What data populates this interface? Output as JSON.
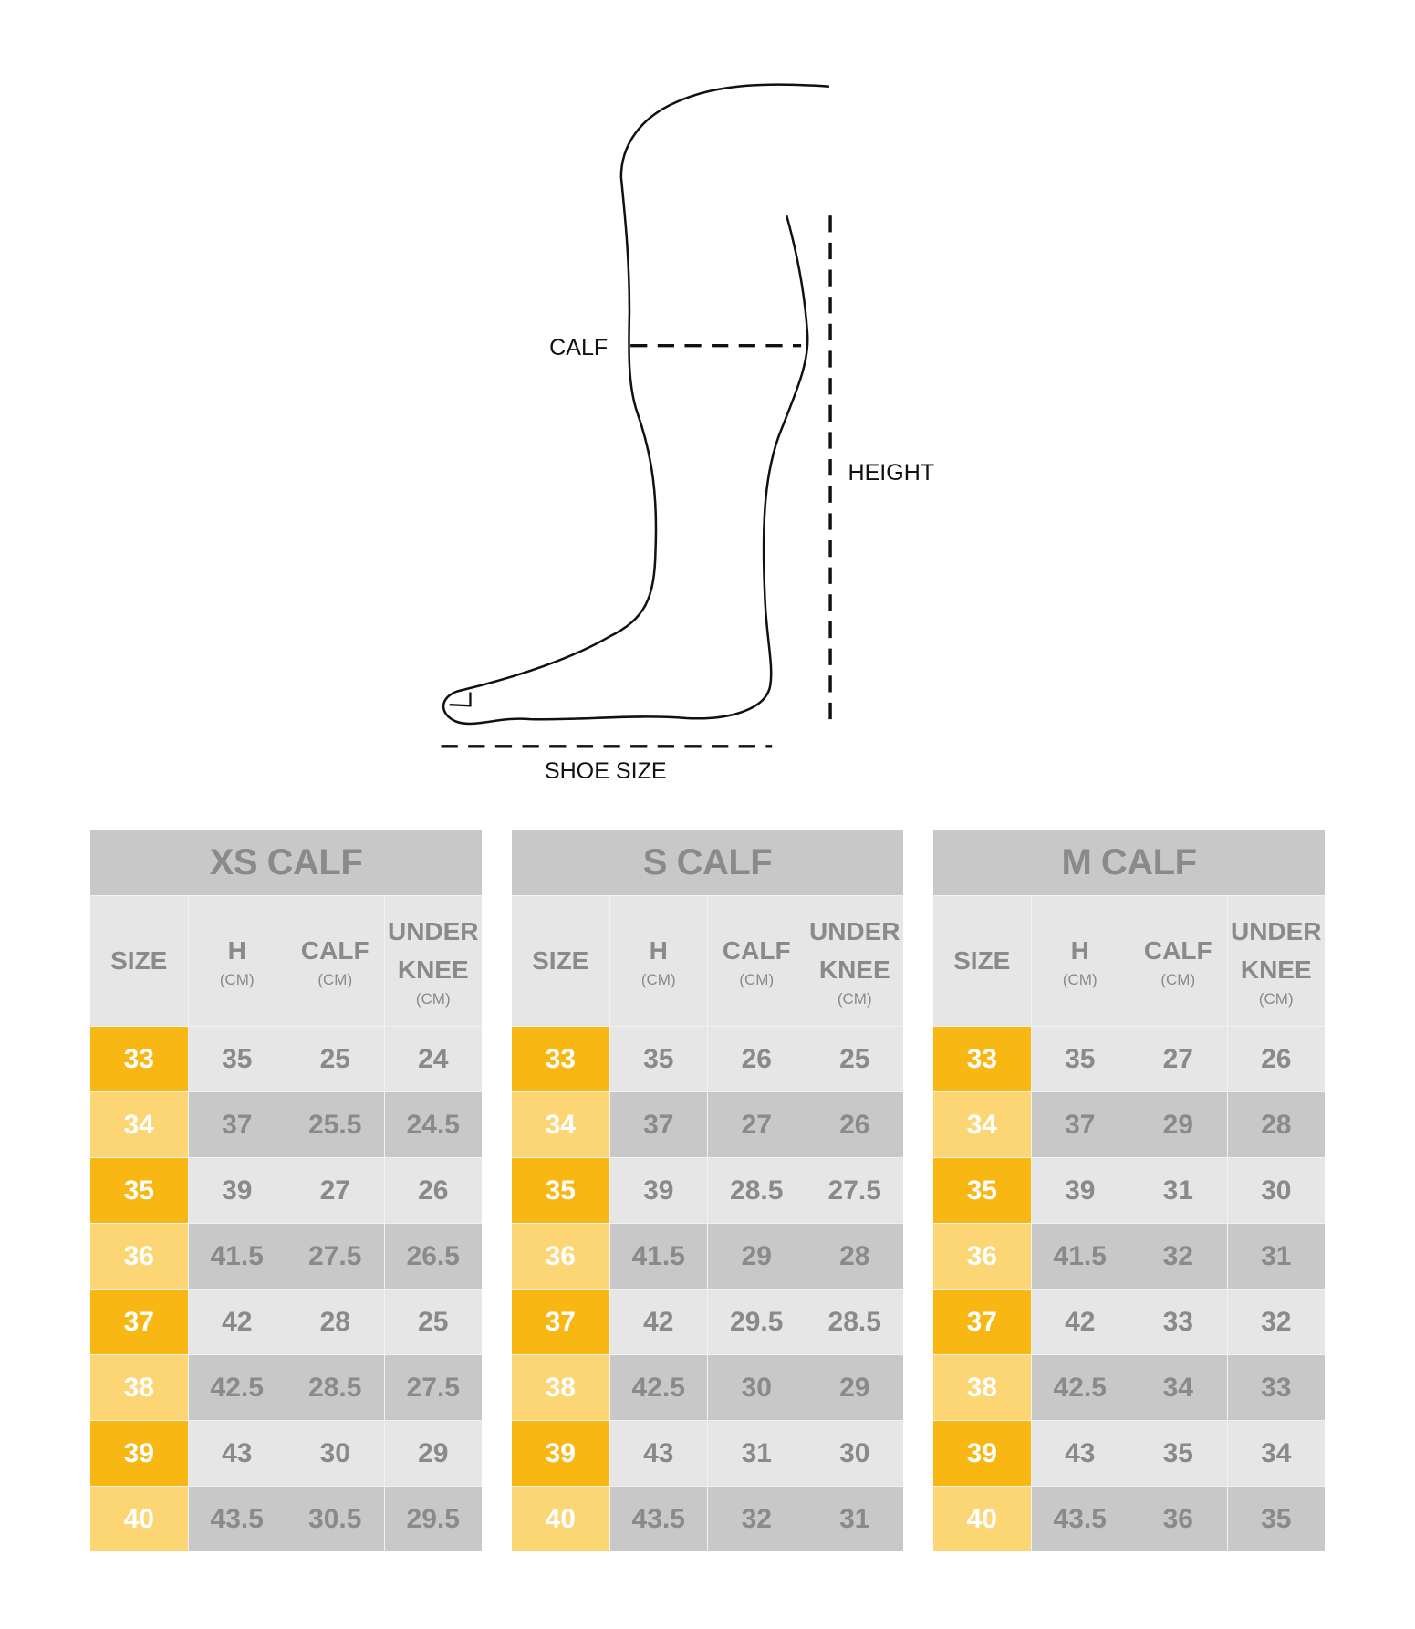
{
  "diagram": {
    "labels": {
      "calf": "CALF",
      "height": "HEIGHT",
      "shoe_size": "SHOE SIZE"
    }
  },
  "colors": {
    "size_odd": "#f9b714",
    "size_even": "#fcd574",
    "row_light": "#e6e6e6",
    "row_dark": "#c8c8c8",
    "text": "#8a8a8a"
  },
  "headers": {
    "size": "SIZE",
    "h": "H",
    "calf": "CALF",
    "under": "UNDER",
    "knee": "KNEE",
    "unit": "(CM)"
  },
  "tables": [
    {
      "title": "XS CALF",
      "rows": [
        [
          "33",
          "35",
          "25",
          "24"
        ],
        [
          "34",
          "37",
          "25.5",
          "24.5"
        ],
        [
          "35",
          "39",
          "27",
          "26"
        ],
        [
          "36",
          "41.5",
          "27.5",
          "26.5"
        ],
        [
          "37",
          "42",
          "28",
          "25"
        ],
        [
          "38",
          "42.5",
          "28.5",
          "27.5"
        ],
        [
          "39",
          "43",
          "30",
          "29"
        ],
        [
          "40",
          "43.5",
          "30.5",
          "29.5"
        ]
      ]
    },
    {
      "title": "S CALF",
      "rows": [
        [
          "33",
          "35",
          "26",
          "25"
        ],
        [
          "34",
          "37",
          "27",
          "26"
        ],
        [
          "35",
          "39",
          "28.5",
          "27.5"
        ],
        [
          "36",
          "41.5",
          "29",
          "28"
        ],
        [
          "37",
          "42",
          "29.5",
          "28.5"
        ],
        [
          "38",
          "42.5",
          "30",
          "29"
        ],
        [
          "39",
          "43",
          "31",
          "30"
        ],
        [
          "40",
          "43.5",
          "32",
          "31"
        ]
      ]
    },
    {
      "title": "M CALF",
      "rows": [
        [
          "33",
          "35",
          "27",
          "26"
        ],
        [
          "34",
          "37",
          "29",
          "28"
        ],
        [
          "35",
          "39",
          "31",
          "30"
        ],
        [
          "36",
          "41.5",
          "32",
          "31"
        ],
        [
          "37",
          "42",
          "33",
          "32"
        ],
        [
          "38",
          "42.5",
          "34",
          "33"
        ],
        [
          "39",
          "43",
          "35",
          "34"
        ],
        [
          "40",
          "43.5",
          "36",
          "35"
        ]
      ]
    }
  ]
}
